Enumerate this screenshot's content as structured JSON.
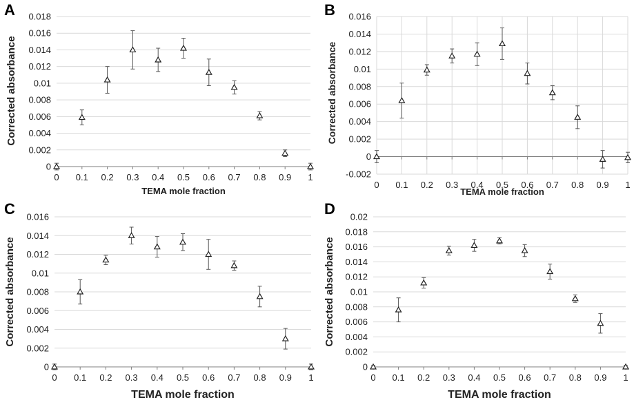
{
  "chart_data": [
    {
      "panel": "A",
      "type": "scatter",
      "xlabel": "TEMA mole fraction",
      "ylabel": "Corrected absorbance",
      "xlim": [
        0,
        1
      ],
      "ylim": [
        0,
        0.018
      ],
      "x_ticks": [
        "0",
        "0.1",
        "0.2",
        "0.3",
        "0.4",
        "0.5",
        "0.6",
        "0.7",
        "0.8",
        "0.9",
        "1"
      ],
      "y_ticks": [
        "0",
        "0.002",
        "0.004",
        "0.006",
        "0.008",
        "0.01",
        "0.012",
        "0.014",
        "0.016",
        "0.018"
      ],
      "grid": "horizontal",
      "x": [
        0,
        0.1,
        0.2,
        0.3,
        0.4,
        0.5,
        0.6,
        0.7,
        0.8,
        0.9,
        1
      ],
      "y": [
        0,
        0.0059,
        0.0104,
        0.014,
        0.0128,
        0.0142,
        0.0113,
        0.0095,
        0.0061,
        0.0016,
        0
      ],
      "err": [
        0.0004,
        0.0009,
        0.0016,
        0.0023,
        0.0014,
        0.0012,
        0.0016,
        0.0008,
        0.0005,
        0.0004,
        0.0004
      ]
    },
    {
      "panel": "B",
      "type": "scatter",
      "xlabel": "TEMA mole fraction",
      "ylabel": "Corrected absorbance",
      "xlim": [
        0,
        1
      ],
      "ylim": [
        -0.002,
        0.016
      ],
      "x_ticks": [
        "0",
        "0.1",
        "0.2",
        "0.3",
        "0.4",
        "0.5",
        "0.6",
        "0.7",
        "0.8",
        "0.9",
        "1"
      ],
      "y_ticks": [
        "-0.002",
        "0",
        "0.002",
        "0.004",
        "0.006",
        "0.008",
        "0.01",
        "0.012",
        "0.014",
        "0.016"
      ],
      "grid": "both",
      "x": [
        0,
        0.1,
        0.2,
        0.3,
        0.4,
        0.5,
        0.6,
        0.7,
        0.8,
        0.9,
        1
      ],
      "y": [
        0,
        0.0064,
        0.0099,
        0.0115,
        0.0117,
        0.0129,
        0.0095,
        0.0073,
        0.0045,
        -0.0003,
        -0.0001
      ],
      "err": [
        0.0007,
        0.002,
        0.0006,
        0.0008,
        0.0013,
        0.0018,
        0.0012,
        0.0008,
        0.0013,
        0.001,
        0.0006
      ]
    },
    {
      "panel": "C",
      "type": "scatter",
      "xlabel": "TEMA mole fraction",
      "ylabel": "Corrected absorbance",
      "xlim": [
        0,
        1
      ],
      "ylim": [
        0,
        0.016
      ],
      "x_ticks": [
        "0",
        "0.1",
        "0.2",
        "0.3",
        "0.4",
        "0.5",
        "0.6",
        "0.7",
        "0.8",
        "0.9",
        "1"
      ],
      "y_ticks": [
        "0",
        "0.002",
        "0.004",
        "0.006",
        "0.008",
        "0.01",
        "0.012",
        "0.014",
        "0.016"
      ],
      "grid": "horizontal",
      "x": [
        0,
        0.1,
        0.2,
        0.3,
        0.4,
        0.5,
        0.6,
        0.7,
        0.8,
        0.9,
        1
      ],
      "y": [
        0,
        0.008,
        0.0114,
        0.014,
        0.0128,
        0.0133,
        0.012,
        0.0108,
        0.0075,
        0.003,
        0
      ],
      "err": [
        0.0003,
        0.0013,
        0.0005,
        0.0009,
        0.0011,
        0.0009,
        0.0016,
        0.0005,
        0.0011,
        0.0011,
        0.0003
      ]
    },
    {
      "panel": "D",
      "type": "scatter",
      "xlabel": "TEMA mole fraction",
      "ylabel": "Corrected absorbance",
      "xlim": [
        0,
        1
      ],
      "ylim": [
        0,
        0.02
      ],
      "x_ticks": [
        "0",
        "0.1",
        "0.2",
        "0.3",
        "0.4",
        "0.5",
        "0.6",
        "0.7",
        "0.8",
        "0.9",
        "1"
      ],
      "y_ticks": [
        "0",
        "0.002",
        "0.004",
        "0.006",
        "0.008",
        "0.01",
        "0.012",
        "0.014",
        "0.016",
        "0.018",
        "0.02"
      ],
      "grid": "horizontal",
      "x": [
        0,
        0.1,
        0.2,
        0.3,
        0.4,
        0.5,
        0.6,
        0.7,
        0.8,
        0.9,
        1
      ],
      "y": [
        0,
        0.0076,
        0.0112,
        0.0155,
        0.0162,
        0.0168,
        0.0155,
        0.0127,
        0.0091,
        0.0058,
        0
      ],
      "err": [
        0.0002,
        0.0016,
        0.0007,
        0.0006,
        0.0008,
        0.0004,
        0.0008,
        0.001,
        0.0005,
        0.0013,
        0.0002
      ]
    }
  ]
}
